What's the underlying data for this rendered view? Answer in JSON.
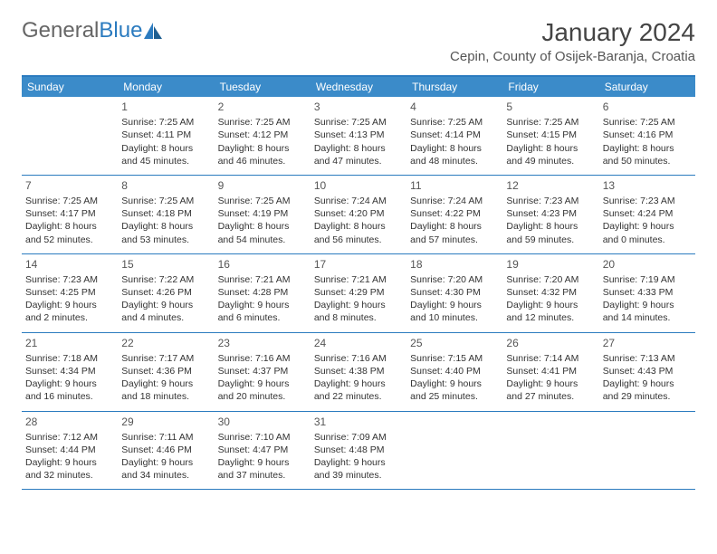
{
  "logo": {
    "text1": "General",
    "text2": "Blue"
  },
  "title": "January 2024",
  "location": "Cepin, County of Osijek-Baranja, Croatia",
  "colors": {
    "header_bar": "#3b8bc9",
    "border": "#2b7bbf",
    "logo_gray": "#666666",
    "logo_blue": "#2b7bbf",
    "text": "#333333",
    "background": "#ffffff"
  },
  "days_of_week": [
    "Sunday",
    "Monday",
    "Tuesday",
    "Wednesday",
    "Thursday",
    "Friday",
    "Saturday"
  ],
  "weeks": [
    [
      null,
      {
        "n": "1",
        "sr": "Sunrise: 7:25 AM",
        "ss": "Sunset: 4:11 PM",
        "d1": "Daylight: 8 hours",
        "d2": "and 45 minutes."
      },
      {
        "n": "2",
        "sr": "Sunrise: 7:25 AM",
        "ss": "Sunset: 4:12 PM",
        "d1": "Daylight: 8 hours",
        "d2": "and 46 minutes."
      },
      {
        "n": "3",
        "sr": "Sunrise: 7:25 AM",
        "ss": "Sunset: 4:13 PM",
        "d1": "Daylight: 8 hours",
        "d2": "and 47 minutes."
      },
      {
        "n": "4",
        "sr": "Sunrise: 7:25 AM",
        "ss": "Sunset: 4:14 PM",
        "d1": "Daylight: 8 hours",
        "d2": "and 48 minutes."
      },
      {
        "n": "5",
        "sr": "Sunrise: 7:25 AM",
        "ss": "Sunset: 4:15 PM",
        "d1": "Daylight: 8 hours",
        "d2": "and 49 minutes."
      },
      {
        "n": "6",
        "sr": "Sunrise: 7:25 AM",
        "ss": "Sunset: 4:16 PM",
        "d1": "Daylight: 8 hours",
        "d2": "and 50 minutes."
      }
    ],
    [
      {
        "n": "7",
        "sr": "Sunrise: 7:25 AM",
        "ss": "Sunset: 4:17 PM",
        "d1": "Daylight: 8 hours",
        "d2": "and 52 minutes."
      },
      {
        "n": "8",
        "sr": "Sunrise: 7:25 AM",
        "ss": "Sunset: 4:18 PM",
        "d1": "Daylight: 8 hours",
        "d2": "and 53 minutes."
      },
      {
        "n": "9",
        "sr": "Sunrise: 7:25 AM",
        "ss": "Sunset: 4:19 PM",
        "d1": "Daylight: 8 hours",
        "d2": "and 54 minutes."
      },
      {
        "n": "10",
        "sr": "Sunrise: 7:24 AM",
        "ss": "Sunset: 4:20 PM",
        "d1": "Daylight: 8 hours",
        "d2": "and 56 minutes."
      },
      {
        "n": "11",
        "sr": "Sunrise: 7:24 AM",
        "ss": "Sunset: 4:22 PM",
        "d1": "Daylight: 8 hours",
        "d2": "and 57 minutes."
      },
      {
        "n": "12",
        "sr": "Sunrise: 7:23 AM",
        "ss": "Sunset: 4:23 PM",
        "d1": "Daylight: 8 hours",
        "d2": "and 59 minutes."
      },
      {
        "n": "13",
        "sr": "Sunrise: 7:23 AM",
        "ss": "Sunset: 4:24 PM",
        "d1": "Daylight: 9 hours",
        "d2": "and 0 minutes."
      }
    ],
    [
      {
        "n": "14",
        "sr": "Sunrise: 7:23 AM",
        "ss": "Sunset: 4:25 PM",
        "d1": "Daylight: 9 hours",
        "d2": "and 2 minutes."
      },
      {
        "n": "15",
        "sr": "Sunrise: 7:22 AM",
        "ss": "Sunset: 4:26 PM",
        "d1": "Daylight: 9 hours",
        "d2": "and 4 minutes."
      },
      {
        "n": "16",
        "sr": "Sunrise: 7:21 AM",
        "ss": "Sunset: 4:28 PM",
        "d1": "Daylight: 9 hours",
        "d2": "and 6 minutes."
      },
      {
        "n": "17",
        "sr": "Sunrise: 7:21 AM",
        "ss": "Sunset: 4:29 PM",
        "d1": "Daylight: 9 hours",
        "d2": "and 8 minutes."
      },
      {
        "n": "18",
        "sr": "Sunrise: 7:20 AM",
        "ss": "Sunset: 4:30 PM",
        "d1": "Daylight: 9 hours",
        "d2": "and 10 minutes."
      },
      {
        "n": "19",
        "sr": "Sunrise: 7:20 AM",
        "ss": "Sunset: 4:32 PM",
        "d1": "Daylight: 9 hours",
        "d2": "and 12 minutes."
      },
      {
        "n": "20",
        "sr": "Sunrise: 7:19 AM",
        "ss": "Sunset: 4:33 PM",
        "d1": "Daylight: 9 hours",
        "d2": "and 14 minutes."
      }
    ],
    [
      {
        "n": "21",
        "sr": "Sunrise: 7:18 AM",
        "ss": "Sunset: 4:34 PM",
        "d1": "Daylight: 9 hours",
        "d2": "and 16 minutes."
      },
      {
        "n": "22",
        "sr": "Sunrise: 7:17 AM",
        "ss": "Sunset: 4:36 PM",
        "d1": "Daylight: 9 hours",
        "d2": "and 18 minutes."
      },
      {
        "n": "23",
        "sr": "Sunrise: 7:16 AM",
        "ss": "Sunset: 4:37 PM",
        "d1": "Daylight: 9 hours",
        "d2": "and 20 minutes."
      },
      {
        "n": "24",
        "sr": "Sunrise: 7:16 AM",
        "ss": "Sunset: 4:38 PM",
        "d1": "Daylight: 9 hours",
        "d2": "and 22 minutes."
      },
      {
        "n": "25",
        "sr": "Sunrise: 7:15 AM",
        "ss": "Sunset: 4:40 PM",
        "d1": "Daylight: 9 hours",
        "d2": "and 25 minutes."
      },
      {
        "n": "26",
        "sr": "Sunrise: 7:14 AM",
        "ss": "Sunset: 4:41 PM",
        "d1": "Daylight: 9 hours",
        "d2": "and 27 minutes."
      },
      {
        "n": "27",
        "sr": "Sunrise: 7:13 AM",
        "ss": "Sunset: 4:43 PM",
        "d1": "Daylight: 9 hours",
        "d2": "and 29 minutes."
      }
    ],
    [
      {
        "n": "28",
        "sr": "Sunrise: 7:12 AM",
        "ss": "Sunset: 4:44 PM",
        "d1": "Daylight: 9 hours",
        "d2": "and 32 minutes."
      },
      {
        "n": "29",
        "sr": "Sunrise: 7:11 AM",
        "ss": "Sunset: 4:46 PM",
        "d1": "Daylight: 9 hours",
        "d2": "and 34 minutes."
      },
      {
        "n": "30",
        "sr": "Sunrise: 7:10 AM",
        "ss": "Sunset: 4:47 PM",
        "d1": "Daylight: 9 hours",
        "d2": "and 37 minutes."
      },
      {
        "n": "31",
        "sr": "Sunrise: 7:09 AM",
        "ss": "Sunset: 4:48 PM",
        "d1": "Daylight: 9 hours",
        "d2": "and 39 minutes."
      },
      null,
      null,
      null
    ]
  ]
}
